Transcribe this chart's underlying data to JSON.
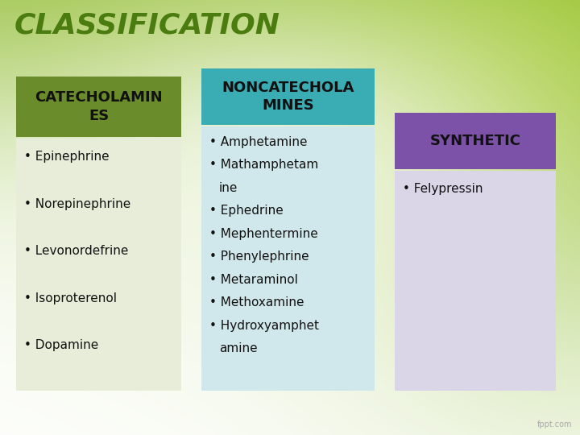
{
  "title": "CLASSIFICATION",
  "title_color": "#4a7c10",
  "title_fontsize": 26,
  "bg_color": "#ffffff",
  "col1_header": "CATECHOLAMIN\nES",
  "col1_header_bg": "#6b8c2a",
  "col1_header_fg": "#111111",
  "col1_body_bg": "#e8edda",
  "col1_items": [
    "Epinephrine",
    "Norepinephrine",
    "Levonordefrine",
    "Isoproterenol",
    "Dopamine"
  ],
  "col2_header": "NONCATECHOLA\nMINES",
  "col2_header_bg": "#3aacb4",
  "col2_header_fg": "#111111",
  "col2_body_bg": "#d0e8ec",
  "col2_items": [
    "Amphetamine",
    "Mathamphetam\nine",
    "Ephedrine",
    "Mephentermine",
    "Phenylephrine",
    "Metaraminol",
    "Methoxamine",
    "Hydroxyamphet\namine"
  ],
  "col3_header": "SYNTHETIC",
  "col3_header_bg": "#7b52a8",
  "col3_header_fg": "#111111",
  "col3_body_bg": "#dbd5e8",
  "col3_items": [
    "Felypressin"
  ],
  "item_fontsize": 11,
  "header_fontsize": 13,
  "bullet": "• "
}
